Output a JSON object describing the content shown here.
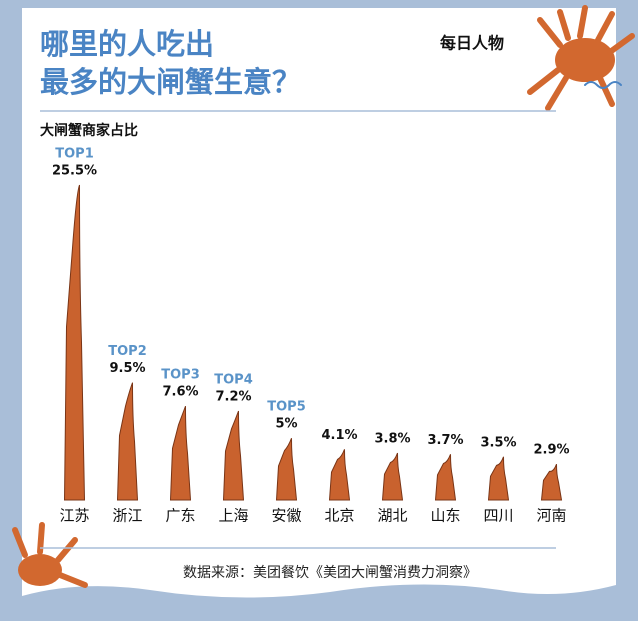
{
  "chart_data": {
    "type": "bar",
    "title": [
      "哪里的人吃出",
      "最多的大闸蟹生意？"
    ],
    "subtitle": "大闸蟹商家占比",
    "brand": "每日人物",
    "source": "数据来源：美团餐饮《美团大闸蟹消费力洞察》",
    "categories": [
      "江苏",
      "浙江",
      "广东",
      "上海",
      "安徽",
      "北京",
      "湖北",
      "山东",
      "四川",
      "河南"
    ],
    "values": [
      25.5,
      9.5,
      7.6,
      7.2,
      5,
      4.1,
      3.8,
      3.7,
      3.5,
      2.9
    ],
    "value_labels": [
      "25.5%",
      "9.5%",
      "7.6%",
      "7.2%",
      "5%",
      "4.1%",
      "3.8%",
      "3.7%",
      "3.5%",
      "2.9%"
    ],
    "ranks": [
      "TOP1",
      "TOP2",
      "TOP3",
      "TOP4",
      "TOP5"
    ],
    "color": "#c9622e"
  }
}
